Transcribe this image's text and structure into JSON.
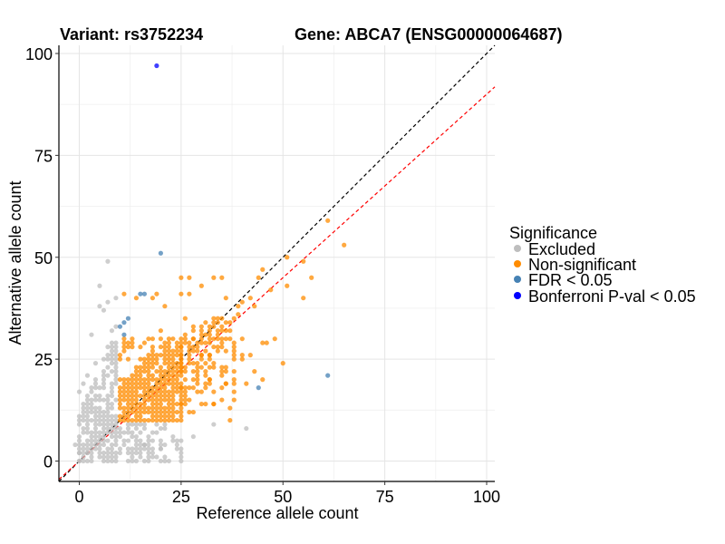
{
  "chart_data": {
    "type": "scatter",
    "title_left": "Variant: rs3752234",
    "title_right": "Gene: ABCA7 (ENSG00000064687)",
    "xlabel": "Reference allele count",
    "ylabel": "Alternative allele count",
    "xlim": [
      -5,
      102
    ],
    "ylim": [
      -5,
      102
    ],
    "xticks": [
      "0",
      "25",
      "50",
      "75",
      "100"
    ],
    "yticks": [
      "0",
      "25",
      "50",
      "75",
      "100"
    ],
    "xtick_values": [
      0,
      25,
      50,
      75,
      100
    ],
    "ytick_values": [
      0,
      25,
      50,
      75,
      100
    ],
    "grid": true,
    "legend": {
      "title": "Significance",
      "position": "right",
      "entries": [
        {
          "label": "Excluded",
          "color": "#BEBEBE"
        },
        {
          "label": "Non-significant",
          "color": "#FF8C00"
        },
        {
          "label": "FDR < 0.05",
          "color": "#4682B4"
        },
        {
          "label": "Bonferroni P-val < 0.05",
          "color": "#0000FF"
        }
      ]
    },
    "reference_lines": [
      {
        "name": "identity",
        "slope": 1,
        "intercept": 0,
        "color": "#000000",
        "style": "dashed"
      },
      {
        "name": "fitted",
        "slope": 0.9,
        "intercept": 0,
        "color": "#FF0000",
        "style": "dashed"
      }
    ],
    "series": [
      {
        "name": "Excluded",
        "color": "#BEBEBE",
        "grid_regions": [
          {
            "x": [
              0,
              9
            ],
            "y": [
              0,
              30
            ],
            "density": 0.75
          },
          {
            "x": [
              10,
              25
            ],
            "y": [
              0,
              9
            ],
            "density": 0.7
          }
        ],
        "points": [
          [
            7,
            49
          ],
          [
            5,
            43
          ],
          [
            7,
            39
          ],
          [
            9,
            40
          ],
          [
            5,
            38
          ],
          [
            6,
            37
          ],
          [
            9,
            33
          ],
          [
            3,
            31
          ],
          [
            8,
            32
          ],
          [
            2,
            21
          ],
          [
            33,
            9
          ],
          [
            41,
            8
          ],
          [
            20,
            8
          ],
          [
            28,
            6
          ],
          [
            25,
            3
          ],
          [
            20,
            3
          ],
          [
            16,
            4
          ],
          [
            0,
            0
          ],
          [
            1,
            1
          ],
          [
            2,
            2
          ],
          [
            3,
            0
          ],
          [
            -1,
            4
          ],
          [
            0,
            2
          ]
        ]
      },
      {
        "name": "Non-significant",
        "color": "#FF8C00",
        "grid_regions": [
          {
            "x": [
              10,
              25
            ],
            "y": [
              10,
              30
            ],
            "density": 0.9
          },
          {
            "x": [
              25,
              38
            ],
            "y": [
              12,
              35
            ],
            "density": 0.45
          }
        ],
        "points": [
          [
            61,
            59
          ],
          [
            65,
            53
          ],
          [
            51,
            50
          ],
          [
            55,
            49
          ],
          [
            57,
            45
          ],
          [
            51,
            43
          ],
          [
            55,
            40
          ],
          [
            50,
            24
          ],
          [
            45,
            47
          ],
          [
            44,
            45
          ],
          [
            47,
            42
          ],
          [
            42,
            40
          ],
          [
            40,
            39
          ],
          [
            39,
            38
          ],
          [
            43,
            38
          ],
          [
            36,
            40
          ],
          [
            39,
            36
          ],
          [
            33,
            45
          ],
          [
            35,
            45
          ],
          [
            30,
            43
          ],
          [
            25,
            45
          ],
          [
            27,
            45
          ],
          [
            25,
            41
          ],
          [
            27,
            41
          ],
          [
            21,
            38
          ],
          [
            20,
            32
          ],
          [
            28,
            30
          ],
          [
            40,
            30
          ],
          [
            42,
            26
          ],
          [
            40,
            25
          ],
          [
            38,
            29
          ],
          [
            45,
            29
          ],
          [
            46,
            29
          ],
          [
            48,
            30
          ],
          [
            36,
            23
          ],
          [
            38,
            22
          ],
          [
            36,
            19
          ],
          [
            41,
            19
          ],
          [
            37,
            10
          ],
          [
            26,
            18
          ],
          [
            30,
            17
          ],
          [
            32,
            20
          ],
          [
            33,
            14
          ],
          [
            45,
            20
          ],
          [
            30,
            26
          ],
          [
            32,
            26
          ],
          [
            34,
            28
          ],
          [
            18,
            40
          ],
          [
            19,
            41
          ],
          [
            14,
            40
          ],
          [
            11,
            41
          ],
          [
            40,
            26
          ],
          [
            43,
            22
          ]
        ]
      },
      {
        "name": "FDR < 0.05",
        "color": "#4682B4",
        "points": [
          [
            20,
            51
          ],
          [
            15,
            41
          ],
          [
            16,
            41
          ],
          [
            12,
            35
          ],
          [
            11,
            34
          ],
          [
            10,
            33
          ],
          [
            11,
            31
          ],
          [
            61,
            21
          ],
          [
            44,
            18
          ]
        ]
      },
      {
        "name": "Bonferroni P-val < 0.05",
        "color": "#0000FF",
        "points": [
          [
            19,
            97
          ]
        ]
      }
    ]
  }
}
